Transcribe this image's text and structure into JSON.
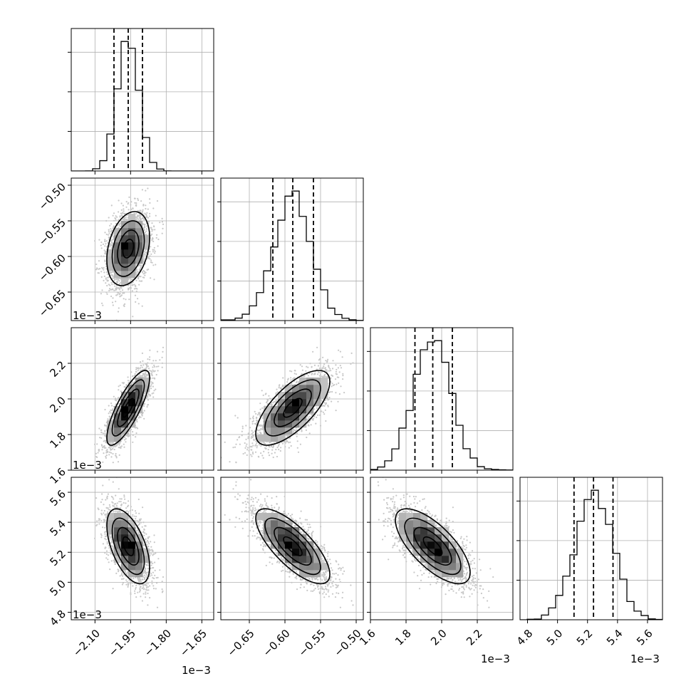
{
  "chart_data": {
    "type": "corner",
    "grid": true,
    "variables": [
      {
        "range": [
          -2.2,
          -1.6
        ],
        "ticks": [
          -2.1,
          -1.95,
          -1.8,
          -1.65
        ],
        "tick_labels": [
          "−2.10",
          "−1.95",
          "−1.80",
          "−1.65"
        ],
        "offset_label": "1e−3",
        "quantiles": [
          -2.02,
          -1.96,
          -1.9
        ],
        "mean": -1.96,
        "std": 0.045
      },
      {
        "range": [
          -0.69,
          -0.49
        ],
        "ticks": [
          -0.65,
          -0.6,
          -0.55,
          -0.5
        ],
        "tick_labels": [
          "−0.65",
          "−0.60",
          "−0.55",
          "−0.50"
        ],
        "offset_label": "1e−3",
        "quantiles": [
          -0.617,
          -0.589,
          -0.56
        ],
        "mean": -0.589,
        "std": 0.026
      },
      {
        "range": [
          1.6,
          2.4
        ],
        "ticks": [
          1.6,
          1.8,
          2.0,
          2.2
        ],
        "tick_labels": [
          "1.6",
          "1.8",
          "2.0",
          "2.2"
        ],
        "offset_label": "1e−3",
        "quantiles": [
          1.85,
          1.95,
          2.06
        ],
        "mean": 1.95,
        "std": 0.105
      },
      {
        "range": [
          4.75,
          5.7
        ],
        "ticks": [
          4.8,
          5.0,
          5.2,
          5.4,
          5.6
        ],
        "tick_labels": [
          "4.8",
          "5.0",
          "5.2",
          "5.4",
          "5.6"
        ],
        "offset_label": "1e−3",
        "quantiles": [
          5.11,
          5.24,
          5.37
        ],
        "mean": 5.24,
        "std": 0.125
      }
    ],
    "correlations": [
      [
        1.0,
        0.3,
        0.8,
        -0.55
      ],
      [
        0.3,
        1.0,
        0.7,
        -0.75
      ],
      [
        0.8,
        0.7,
        1.0,
        -0.7
      ],
      [
        -0.55,
        -0.75,
        -0.7,
        1.0
      ]
    ],
    "n_samples": 5000,
    "colors": {
      "line": "#000000",
      "grid": "#b0b0b0",
      "points": "#c8c8c8"
    }
  }
}
